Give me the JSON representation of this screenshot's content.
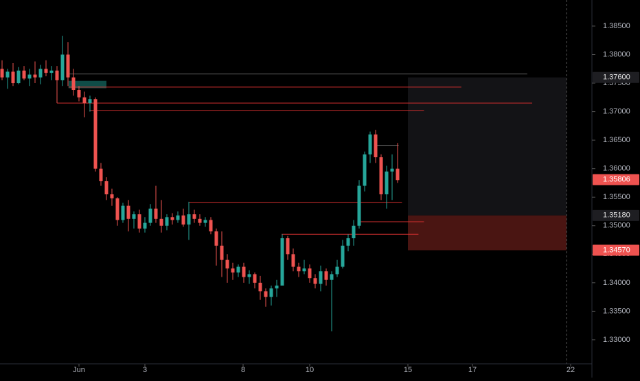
{
  "chart_data": {
    "type": "candlestick",
    "up_color": "#26a69a",
    "down_color": "#ef5350",
    "xlim": [
      -0.375,
      107.375
    ],
    "ylim": [
      1.32578,
      1.38957
    ],
    "xticks": [
      {
        "value": 14,
        "label": "Jun"
      },
      {
        "value": 26,
        "label": "3"
      },
      {
        "value": 43.875,
        "label": "8"
      },
      {
        "value": 56,
        "label": "10"
      },
      {
        "value": 73.875,
        "label": "15"
      },
      {
        "value": 85.625,
        "label": "17"
      },
      {
        "value": 103.5,
        "label": "22"
      }
    ],
    "yticks": [
      {
        "value": 1.33,
        "label": "1.33000"
      },
      {
        "value": 1.335,
        "label": "1.33500"
      },
      {
        "value": 1.34,
        "label": "1.34000"
      },
      {
        "value": 1.345,
        "label": "1.34500"
      },
      {
        "value": 1.35,
        "label": "1.35000"
      },
      {
        "value": 1.355,
        "label": "1.35500"
      },
      {
        "value": 1.36,
        "label": "1.36000"
      },
      {
        "value": 1.365,
        "label": "1.36500"
      },
      {
        "value": 1.37,
        "label": "1.37000"
      },
      {
        "value": 1.375,
        "label": "1.37500"
      },
      {
        "value": 1.38,
        "label": "1.38000"
      },
      {
        "value": 1.385,
        "label": "1.38500"
      }
    ],
    "open": [
      1.3775,
      1.376,
      1.377,
      1.375,
      1.3772,
      1.3758,
      1.3765,
      1.376,
      1.3775,
      1.3768,
      1.3772,
      1.3755,
      1.38,
      1.376,
      1.3738,
      1.3725,
      1.3715,
      1.3722,
      1.36,
      1.3578,
      1.3555,
      1.3548,
      1.351,
      1.3535,
      1.3512,
      1.352,
      1.3495,
      1.3505,
      1.353,
      1.3512,
      1.35,
      1.3515,
      1.351,
      1.3518,
      1.3502,
      1.352,
      1.3512,
      1.3505,
      1.351,
      1.349,
      1.3465,
      1.344,
      1.3425,
      1.3418,
      1.3428,
      1.341,
      1.3415,
      1.34,
      1.3385,
      1.3375,
      1.339,
      1.3395,
      1.3478,
      1.345,
      1.3428,
      1.342,
      1.3425,
      1.3408,
      1.3398,
      1.342,
      1.3405,
      1.3415,
      1.3428,
      1.3465,
      1.3478,
      1.35,
      1.357,
      1.3625,
      1.366,
      1.362,
      1.3555,
      1.3595,
      1.36
    ],
    "high": [
      1.379,
      1.3775,
      1.3785,
      1.3778,
      1.378,
      1.3775,
      1.3788,
      1.3782,
      1.379,
      1.378,
      1.378,
      1.3833,
      1.3822,
      1.3775,
      1.3745,
      1.3735,
      1.3728,
      1.3725,
      1.361,
      1.3585,
      1.3565,
      1.355,
      1.354,
      1.3545,
      1.3525,
      1.3528,
      1.3515,
      1.3538,
      1.357,
      1.3545,
      1.352,
      1.3522,
      1.3525,
      1.353,
      1.3542,
      1.3528,
      1.352,
      1.3515,
      1.3515,
      1.3495,
      1.349,
      1.345,
      1.3435,
      1.3432,
      1.3435,
      1.3422,
      1.3418,
      1.3412,
      1.339,
      1.3395,
      1.3405,
      1.3485,
      1.3482,
      1.346,
      1.3435,
      1.344,
      1.3432,
      1.3415,
      1.343,
      1.3425,
      1.342,
      1.344,
      1.3475,
      1.3485,
      1.351,
      1.358,
      1.363,
      1.3665,
      1.3668,
      1.3625,
      1.3605,
      1.3625,
      1.3645
    ],
    "low": [
      1.3755,
      1.374,
      1.3745,
      1.3748,
      1.3755,
      1.3745,
      1.375,
      1.3748,
      1.3762,
      1.3755,
      1.3715,
      1.3745,
      1.3745,
      1.3728,
      1.3718,
      1.369,
      1.37,
      1.3595,
      1.357,
      1.3545,
      1.3535,
      1.35,
      1.3505,
      1.349,
      1.3495,
      1.3488,
      1.3488,
      1.35,
      1.3505,
      1.3488,
      1.3492,
      1.3502,
      1.3505,
      1.3498,
      1.3475,
      1.3505,
      1.35,
      1.3498,
      1.3485,
      1.343,
      1.341,
      1.34,
      1.3405,
      1.341,
      1.34,
      1.3398,
      1.339,
      1.337,
      1.3358,
      1.336,
      1.3375,
      1.3395,
      1.344,
      1.342,
      1.341,
      1.3415,
      1.34,
      1.339,
      1.3385,
      1.3395,
      1.3315,
      1.341,
      1.3425,
      1.3455,
      1.3465,
      1.3495,
      1.356,
      1.361,
      1.361,
      1.3545,
      1.353,
      1.3545,
      1.3575
    ],
    "close": [
      1.376,
      1.377,
      1.375,
      1.3772,
      1.3758,
      1.3765,
      1.376,
      1.3775,
      1.3768,
      1.3772,
      1.3755,
      1.38,
      1.376,
      1.3738,
      1.3725,
      1.3715,
      1.3722,
      1.36,
      1.3578,
      1.3555,
      1.3548,
      1.351,
      1.3535,
      1.3512,
      1.352,
      1.3495,
      1.3505,
      1.353,
      1.3512,
      1.35,
      1.3515,
      1.351,
      1.3518,
      1.3502,
      1.352,
      1.3512,
      1.3505,
      1.351,
      1.349,
      1.3465,
      1.344,
      1.3425,
      1.3418,
      1.3428,
      1.341,
      1.3415,
      1.34,
      1.3385,
      1.3375,
      1.339,
      1.3395,
      1.3478,
      1.345,
      1.3428,
      1.342,
      1.3425,
      1.3408,
      1.3398,
      1.342,
      1.3405,
      1.3415,
      1.3428,
      1.3465,
      1.3478,
      1.35,
      1.357,
      1.3625,
      1.366,
      1.362,
      1.3555,
      1.3595,
      1.36,
      1.358
    ],
    "levels": [
      {
        "value": 1.3766,
        "x": [
          12.1,
          95.6
        ],
        "color": "#555555"
      },
      {
        "value": 1.3743,
        "x": [
          12.1,
          83.6
        ],
        "color": "#d32f2f"
      },
      {
        "value": 1.3715,
        "x": [
          10,
          96.5
        ],
        "color": "#d32f2f"
      },
      {
        "value": 1.3702,
        "x": [
          15.9,
          76.8
        ],
        "color": "#d32f2f"
      },
      {
        "value": 1.3641,
        "x": [
          68,
          72.2
        ],
        "color": "#777777"
      },
      {
        "value": 1.3541,
        "x": [
          34,
          72.8
        ],
        "color": "#d32f2f"
      },
      {
        "value": 1.3507,
        "x": [
          64.9,
          76.8
        ],
        "color": "#d32f2f"
      },
      {
        "value": 1.3485,
        "x": [
          50.9,
          75.8
        ],
        "color": "#d32f2f"
      }
    ],
    "zones": [
      {
        "x": [
          12.1,
          19
        ],
        "y": [
          1.3741,
          1.3754
        ],
        "color": "#0f4c47"
      }
    ],
    "position": {
      "x": [
        73.875,
        102.75
      ],
      "target": {
        "value": 1.376,
        "label": "1.37600"
      },
      "entry": {
        "value": 1.3518,
        "label": "1.35180"
      },
      "stop": {
        "value": 1.3457,
        "label": "1.34570"
      }
    },
    "last_price": {
      "value": 1.35806,
      "label": "1.35806"
    },
    "cursor_x": 102.75
  }
}
